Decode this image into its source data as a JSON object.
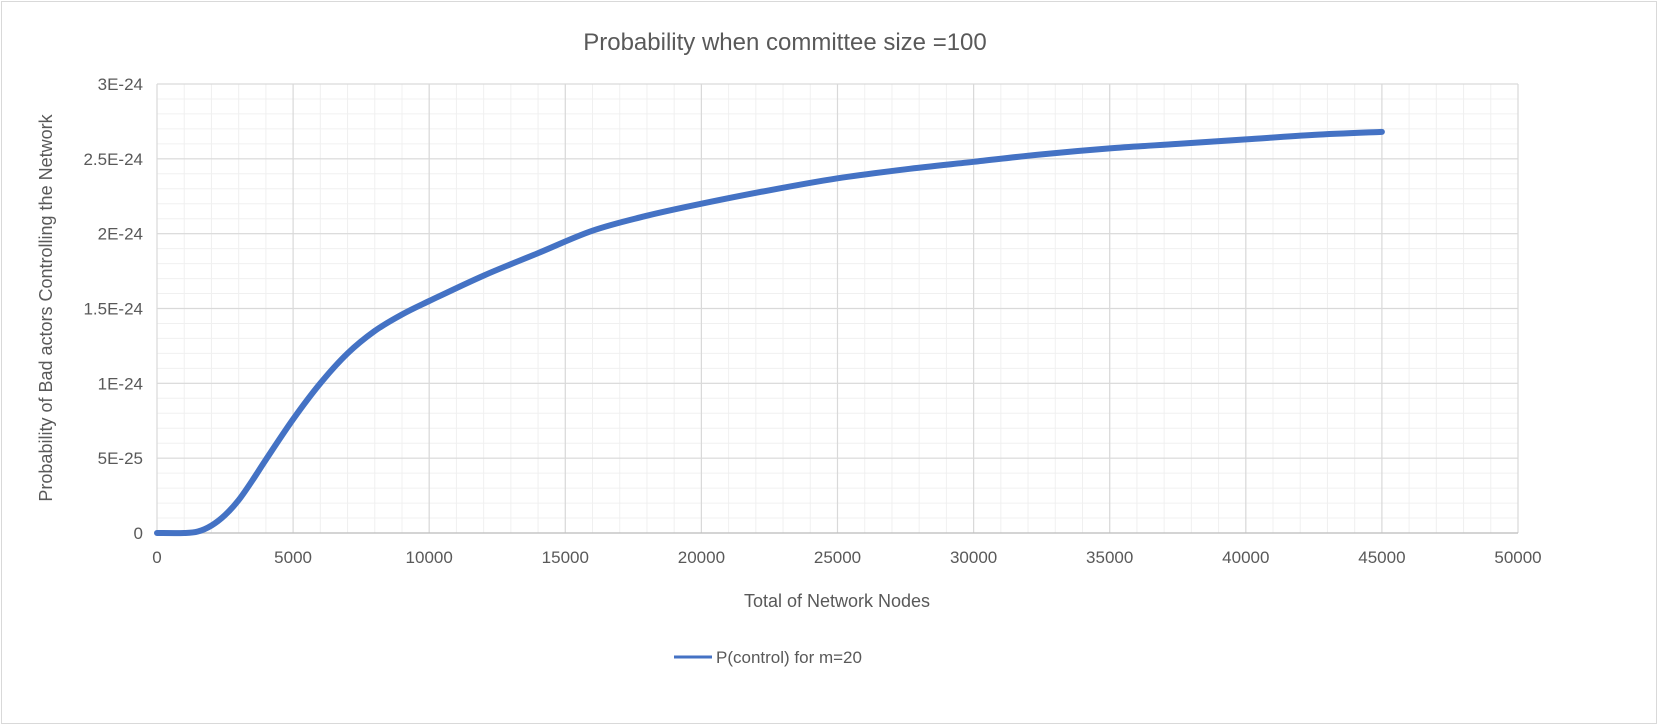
{
  "chart_data": {
    "type": "line",
    "title": "Probability when committee size =100",
    "xlabel": "Total of Network Nodes",
    "ylabel": "Probability of Bad actors Controlling the Network",
    "xlim": [
      0,
      50000
    ],
    "ylim": [
      0,
      3e-24
    ],
    "x_ticks": [
      0,
      5000,
      10000,
      15000,
      20000,
      25000,
      30000,
      35000,
      40000,
      45000,
      50000
    ],
    "x_tick_labels": [
      "0",
      "5000",
      "10000",
      "15000",
      "20000",
      "25000",
      "30000",
      "35000",
      "40000",
      "45000",
      "50000"
    ],
    "y_ticks": [
      0,
      5e-25,
      1e-24,
      1.5e-24,
      2e-24,
      2.5e-24,
      3e-24
    ],
    "y_tick_labels": [
      "0",
      "5E-25",
      "1E-24",
      "1.5E-24",
      "2E-24",
      "2.5E-24",
      "3E-24"
    ],
    "grid": true,
    "minor_grid": true,
    "legend_position": "bottom",
    "series": [
      {
        "name": "P(control) for m=20",
        "color": "#4472c4",
        "x": [
          0,
          1000,
          1500,
          2000,
          2500,
          3000,
          3500,
          4000,
          5000,
          6000,
          7000,
          8000,
          9000,
          10000,
          12000,
          14000,
          16000,
          18000,
          20000,
          22500,
          25000,
          27500,
          30000,
          32500,
          35000,
          37500,
          40000,
          42500,
          45000
        ],
        "y": [
          0,
          0,
          1e-26,
          5e-26,
          1.2e-25,
          2.2e-25,
          3.5e-25,
          4.9e-25,
          7.6e-25,
          1e-24,
          1.2e-24,
          1.35e-24,
          1.46e-24,
          1.55e-24,
          1.72e-24,
          1.87e-24,
          2.02e-24,
          2.12e-24,
          2.2e-24,
          2.29e-24,
          2.37e-24,
          2.43e-24,
          2.48e-24,
          2.53e-24,
          2.57e-24,
          2.6e-24,
          2.63e-24,
          2.66e-24,
          2.68e-24
        ]
      }
    ]
  }
}
